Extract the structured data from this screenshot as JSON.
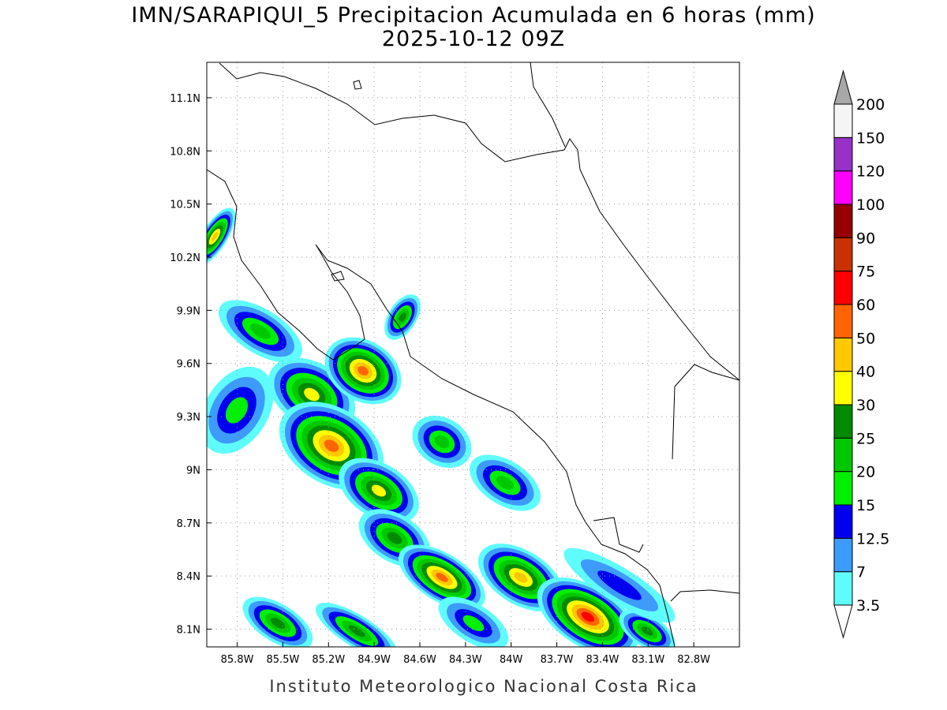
{
  "title": "IMN/SARAPIQUI_5 Precipitacion Acumulada en 6 horas (mm)",
  "subtitle": "2025-10-12 09Z",
  "footer": "Instituto Meteorologico Nacional Costa Rica",
  "map": {
    "lon_range": [
      -86,
      -82.5
    ],
    "lat_range": [
      8,
      11.3
    ],
    "grid": true,
    "lon_ticks": [
      {
        "value": -85.8,
        "label": "85.8W"
      },
      {
        "value": -85.5,
        "label": "85.5W"
      },
      {
        "value": -85.2,
        "label": "85.2W"
      },
      {
        "value": -84.9,
        "label": "84.9W"
      },
      {
        "value": -84.6,
        "label": "84.6W"
      },
      {
        "value": -84.3,
        "label": "84.3W"
      },
      {
        "value": -84,
        "label": "84W"
      },
      {
        "value": -83.7,
        "label": "83.7W"
      },
      {
        "value": -83.4,
        "label": "83.4W"
      },
      {
        "value": -83.1,
        "label": "83.1W"
      },
      {
        "value": -82.8,
        "label": "82.8W"
      }
    ],
    "lat_ticks": [
      {
        "value": 8.1,
        "label": "8.1N"
      },
      {
        "value": 8.4,
        "label": "8.4N"
      },
      {
        "value": 8.7,
        "label": "8.7N"
      },
      {
        "value": 9,
        "label": "9N"
      },
      {
        "value": 9.3,
        "label": "9.3N"
      },
      {
        "value": 9.6,
        "label": "9.6N"
      },
      {
        "value": 9.9,
        "label": "9.9N"
      },
      {
        "value": 10.2,
        "label": "10.2N"
      },
      {
        "value": 10.5,
        "label": "10.5N"
      },
      {
        "value": 10.8,
        "label": "10.8N"
      },
      {
        "value": 11.1,
        "label": "11.1N"
      }
    ]
  },
  "colorbar": {
    "levels": [
      3.5,
      7,
      12.5,
      15,
      20,
      25,
      30,
      40,
      50,
      60,
      75,
      90,
      100,
      120,
      150,
      200
    ],
    "colors": [
      "#5ffcfc",
      "#3d9bfb",
      "#0000f0",
      "#00f000",
      "#00c800",
      "#008a00",
      "#ffff00",
      "#ffc800",
      "#ff6400",
      "#ff0000",
      "#c83200",
      "#960000",
      "#ff00ff",
      "#9632c8",
      "#f5f5f5"
    ],
    "under_color": "#ffffff",
    "over_color": "#a8a8a8"
  }
}
